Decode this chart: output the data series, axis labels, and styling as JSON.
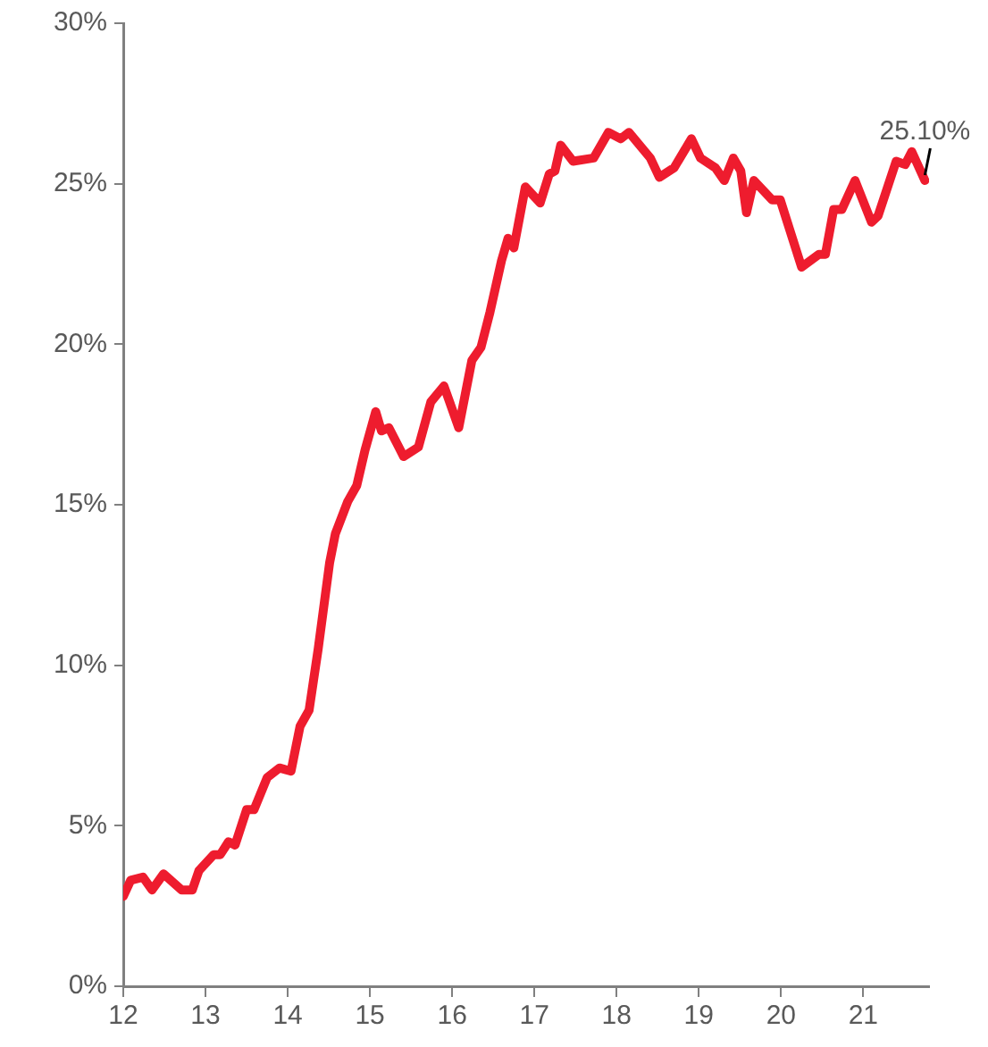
{
  "chart_data": {
    "type": "line",
    "x": [
      12.0,
      12.09,
      12.24,
      12.35,
      12.49,
      12.71,
      12.84,
      12.92,
      13.1,
      13.18,
      13.28,
      13.36,
      13.5,
      13.59,
      13.75,
      13.9,
      14.04,
      14.15,
      14.26,
      14.37,
      14.51,
      14.58,
      14.73,
      14.84,
      14.94,
      15.07,
      15.14,
      15.23,
      15.41,
      15.59,
      15.74,
      15.9,
      16.08,
      16.24,
      16.35,
      16.46,
      16.6,
      16.68,
      16.75,
      16.89,
      17.07,
      17.18,
      17.25,
      17.32,
      17.47,
      17.72,
      17.9,
      18.05,
      18.15,
      18.41,
      18.52,
      18.7,
      18.91,
      19.02,
      19.2,
      19.31,
      19.42,
      19.51,
      19.58,
      19.67,
      19.89,
      19.99,
      20.25,
      20.46,
      20.54,
      20.64,
      20.74,
      20.9,
      21.1,
      21.18,
      21.4,
      21.51,
      21.59,
      21.75
    ],
    "series": [
      {
        "color": "#ee1c2e",
        "values": [
          2.8,
          3.3,
          3.4,
          3.0,
          3.5,
          3.0,
          3.0,
          3.6,
          4.1,
          4.1,
          4.5,
          4.4,
          5.5,
          5.5,
          6.5,
          6.8,
          6.7,
          8.1,
          8.6,
          10.5,
          13.2,
          14.1,
          15.1,
          15.6,
          16.7,
          17.9,
          17.3,
          17.4,
          16.5,
          16.8,
          18.2,
          18.7,
          17.4,
          19.5,
          19.9,
          21.0,
          22.6,
          23.3,
          23.0,
          24.9,
          24.4,
          25.3,
          25.4,
          26.2,
          25.7,
          25.8,
          26.6,
          26.4,
          26.6,
          25.8,
          25.2,
          25.5,
          26.4,
          25.8,
          25.5,
          25.1,
          25.8,
          25.4,
          24.1,
          25.1,
          24.5,
          24.5,
          22.4,
          22.8,
          22.8,
          24.2,
          24.2,
          25.1,
          23.8,
          24.0,
          25.7,
          25.6,
          26.0,
          25.1
        ]
      }
    ],
    "xlim": [
      12,
      21.8
    ],
    "xticks": [
      12,
      13,
      14,
      15,
      16,
      17,
      18,
      19,
      20,
      21
    ],
    "ylim": [
      0,
      30
    ],
    "yticks": [
      {
        "value": 0,
        "label": "0%"
      },
      {
        "value": 5,
        "label": "5%"
      },
      {
        "value": 10,
        "label": "10%"
      },
      {
        "value": 15,
        "label": "15%"
      },
      {
        "value": 20,
        "label": "20%"
      },
      {
        "value": 25,
        "label": "25%"
      },
      {
        "value": 30,
        "label": "30%"
      }
    ],
    "annotations": [
      {
        "text": "25.10%",
        "x": 21.75,
        "y": 25.1
      }
    ],
    "grid": false,
    "legend": false,
    "marker": "none",
    "line_style": "solid"
  }
}
